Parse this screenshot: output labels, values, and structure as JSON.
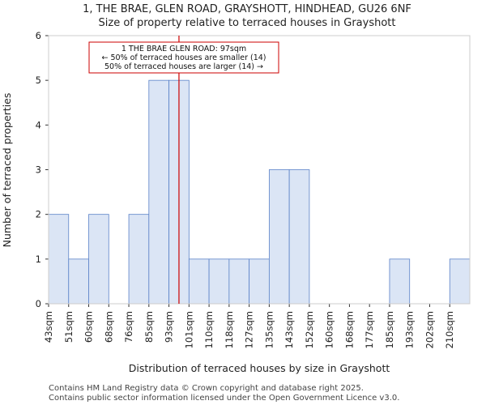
{
  "chart_data": {
    "type": "bar",
    "title": "1, THE BRAE, GLEN ROAD, GRAYSHOTT, HINDHEAD, GU26 6NF",
    "subtitle": "Size of property relative to terraced houses in Grayshott",
    "xlabel": "Distribution of terraced houses by size in Grayshott",
    "ylabel": "Number of terraced properties",
    "categories": [
      "43sqm",
      "51sqm",
      "60sqm",
      "68sqm",
      "76sqm",
      "85sqm",
      "93sqm",
      "101sqm",
      "110sqm",
      "118sqm",
      "127sqm",
      "135sqm",
      "143sqm",
      "152sqm",
      "160sqm",
      "168sqm",
      "177sqm",
      "185sqm",
      "193sqm",
      "202sqm",
      "210sqm"
    ],
    "values": [
      2,
      1,
      2,
      0,
      2,
      5,
      5,
      1,
      1,
      1,
      1,
      3,
      3,
      0,
      0,
      0,
      0,
      1,
      0,
      0,
      1
    ],
    "ylim": [
      0,
      6
    ],
    "yticks": [
      0,
      1,
      2,
      3,
      4,
      5,
      6
    ],
    "bar_color": "#dbe5f5",
    "bar_edge_color": "#5b82c8",
    "marker": {
      "value_bin_position": 6.5,
      "color": "#cc0000",
      "annotation": [
        "1 THE BRAE GLEN ROAD: 97sqm",
        "← 50% of terraced houses are smaller (14)",
        "50% of terraced houses are larger (14) →"
      ]
    }
  },
  "footer": {
    "line1": "Contains HM Land Registry data © Crown copyright and database right 2025.",
    "line2": "Contains public sector information licensed under the Open Government Licence v3.0."
  }
}
